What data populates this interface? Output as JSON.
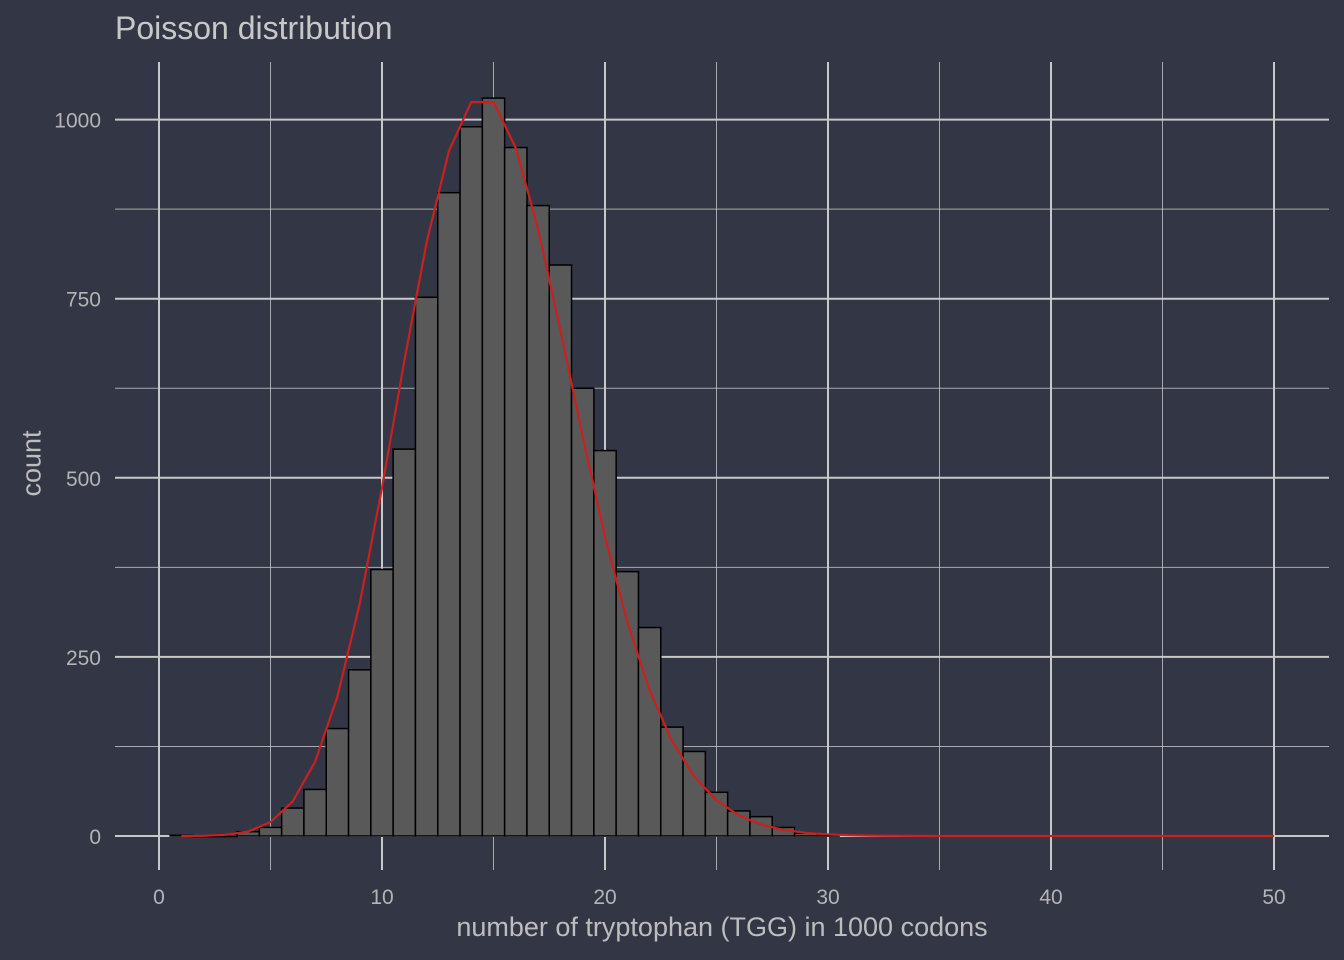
{
  "chart_data": {
    "type": "bar",
    "title": "Poisson distribution",
    "xlabel": "number of tryptophan (TGG) in 1000 codons",
    "ylabel": "count",
    "xlim": [
      0,
      50
    ],
    "ylim": [
      0,
      1000
    ],
    "x_ticks": [
      "0",
      "10",
      "20",
      "30",
      "40",
      "50"
    ],
    "y_ticks": [
      "0",
      "250",
      "500",
      "750",
      "1000"
    ],
    "grid": true,
    "background": "#333645",
    "bar_fill": "#595959",
    "bar_stroke": "#000000",
    "grid_color": "#c8c8c8",
    "curve_color": "#cc1f1f",
    "bins": [
      {
        "x": 1,
        "count": 1
      },
      {
        "x": 2,
        "count": 0
      },
      {
        "x": 3,
        "count": 0
      },
      {
        "x": 4,
        "count": 6
      },
      {
        "x": 5,
        "count": 12
      },
      {
        "x": 6,
        "count": 39
      },
      {
        "x": 7,
        "count": 65
      },
      {
        "x": 8,
        "count": 150
      },
      {
        "x": 9,
        "count": 232
      },
      {
        "x": 10,
        "count": 372
      },
      {
        "x": 11,
        "count": 540
      },
      {
        "x": 12,
        "count": 752
      },
      {
        "x": 13,
        "count": 898
      },
      {
        "x": 14,
        "count": 990
      },
      {
        "x": 15,
        "count": 1030
      },
      {
        "x": 16,
        "count": 961
      },
      {
        "x": 17,
        "count": 880
      },
      {
        "x": 18,
        "count": 797
      },
      {
        "x": 19,
        "count": 625
      },
      {
        "x": 20,
        "count": 538
      },
      {
        "x": 21,
        "count": 369
      },
      {
        "x": 22,
        "count": 291
      },
      {
        "x": 23,
        "count": 152
      },
      {
        "x": 24,
        "count": 118
      },
      {
        "x": 25,
        "count": 61
      },
      {
        "x": 26,
        "count": 35
      },
      {
        "x": 27,
        "count": 27
      },
      {
        "x": 28,
        "count": 12
      },
      {
        "x": 29,
        "count": 4
      },
      {
        "x": 30,
        "count": 2
      }
    ],
    "poisson_curve": {
      "lambda": 15,
      "n": 10000
    }
  }
}
